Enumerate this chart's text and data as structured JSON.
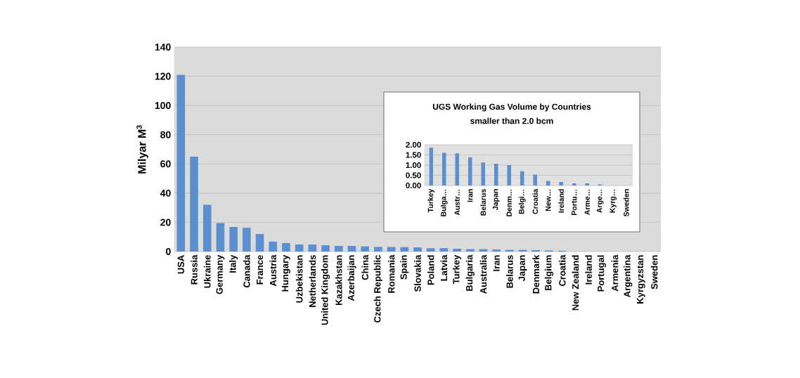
{
  "chart_data": [
    {
      "type": "bar",
      "ylabel": "Milyar M$^{3}$",
      "color": "#5b8fd0",
      "categories": [
        "USA",
        "Russia",
        "Ukraine",
        "Germany",
        "Italy",
        "Canada",
        "France",
        "Austria",
        "Hungary",
        "Uzbekistan",
        "Netherlands",
        "United Kingdom",
        "Kazakhstan",
        "Azerbaijan",
        "China",
        "Czech Republic",
        "Romania",
        "Spain",
        "Slovakia",
        "Poland",
        "Latvia",
        "Turkey",
        "Bulgaria",
        "Australia",
        "Iran",
        "Belarus",
        "Japan",
        "Denmark",
        "Belgium",
        "Croatia",
        "New Zealand",
        "Ireland",
        "Portugal",
        "Armenia",
        "Argentina",
        "Kyrgyzstan",
        "Sweden"
      ],
      "values": [
        121,
        65,
        32,
        19.5,
        16.8,
        16.2,
        12,
        6.8,
        5.8,
        4.8,
        4.8,
        4.3,
        3.8,
        3.8,
        3.5,
        3.2,
        3.1,
        3,
        2.8,
        2.3,
        2.3,
        1.9,
        1.6,
        1.6,
        1.4,
        1.1,
        1.1,
        1.0,
        0.7,
        0.5,
        null,
        null,
        null,
        null,
        0,
        0,
        0
      ],
      "ylim": [
        0,
        140
      ],
      "yticks": [
        0,
        20,
        40,
        60,
        80,
        100,
        120,
        140
      ],
      "grid": "y"
    },
    {
      "type": "bar",
      "title": "UGS Working Gas Volume by Countries",
      "subtitle": "smaller than 2.0 bcm",
      "color": "#5b8fd0",
      "categories": [
        "Turkey",
        "Bulga…",
        "Austr…",
        "Iran",
        "Belarus",
        "Japan",
        "Denm…",
        "Belgi…",
        "Croatia",
        "New…",
        "Ireland",
        "Portu…",
        "Arme…",
        "Arge…",
        "Kyrg…",
        "Sweden"
      ],
      "values": [
        1.85,
        1.6,
        1.58,
        1.38,
        1.13,
        1.07,
        1.0,
        0.7,
        0.53,
        0.22,
        0.17,
        0.1,
        0.1,
        0.05,
        null,
        null
      ],
      "ylim": [
        0,
        2
      ],
      "yticks": [
        {
          "value": 0,
          "label": "0.00"
        },
        {
          "value": 0.5,
          "label": "0.50"
        },
        {
          "value": 1,
          "label": "1.00"
        },
        {
          "value": 1.5,
          "label": "1.50"
        },
        {
          "value": 2,
          "label": "2.00"
        }
      ],
      "grid": "y"
    }
  ]
}
